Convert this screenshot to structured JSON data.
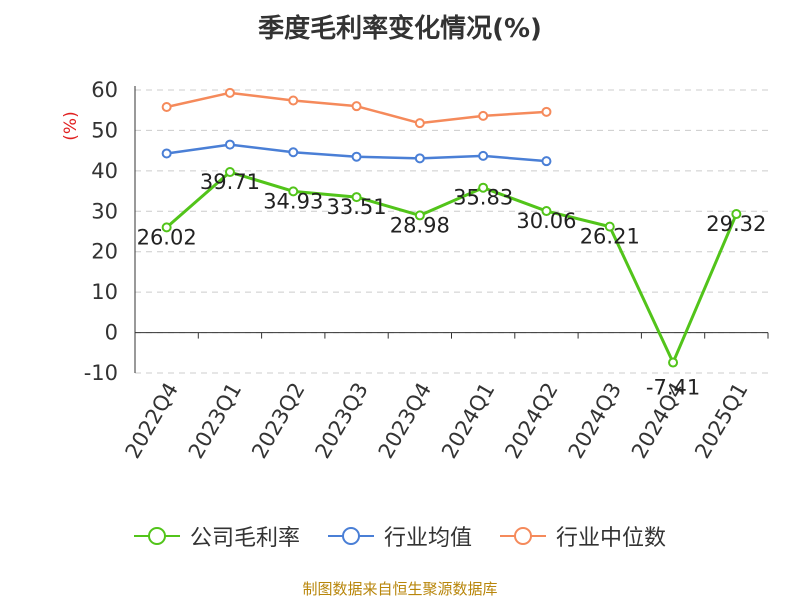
{
  "chart_data": {
    "type": "line",
    "title": "季度毛利率变化情况(%)",
    "ylabel": "(%)",
    "ylim": [
      -10,
      60
    ],
    "yticks": [
      -10,
      0,
      10,
      20,
      30,
      40,
      50,
      60
    ],
    "grid": true,
    "legend_position": "bottom",
    "categories": [
      "2022Q4",
      "2023Q1",
      "2023Q2",
      "2023Q3",
      "2023Q4",
      "2024Q1",
      "2024Q2",
      "2024Q3",
      "2024Q4",
      "2025Q1"
    ],
    "series": [
      {
        "name": "公司毛利率",
        "color": "#52c41a",
        "show_labels": true,
        "values": [
          26.02,
          39.71,
          34.93,
          33.51,
          28.98,
          35.83,
          30.06,
          26.21,
          -7.41,
          29.32
        ],
        "labels": [
          "26.02",
          "39.71",
          "34.93",
          "33.51",
          "28.98",
          "35.83",
          "30.06",
          "26.21",
          "-7.41",
          "29.32"
        ]
      },
      {
        "name": "行业均值",
        "color": "#4a7fd6",
        "show_labels": false,
        "values": [
          44.3,
          46.5,
          44.6,
          43.5,
          43.1,
          43.7,
          42.4,
          null,
          null,
          null
        ]
      },
      {
        "name": "行业中位数",
        "color": "#f58a5b",
        "show_labels": false,
        "values": [
          55.8,
          59.3,
          57.4,
          56.0,
          51.8,
          53.6,
          54.6,
          null,
          null,
          null
        ]
      }
    ]
  },
  "source": "制图数据来自恒生聚源数据库"
}
